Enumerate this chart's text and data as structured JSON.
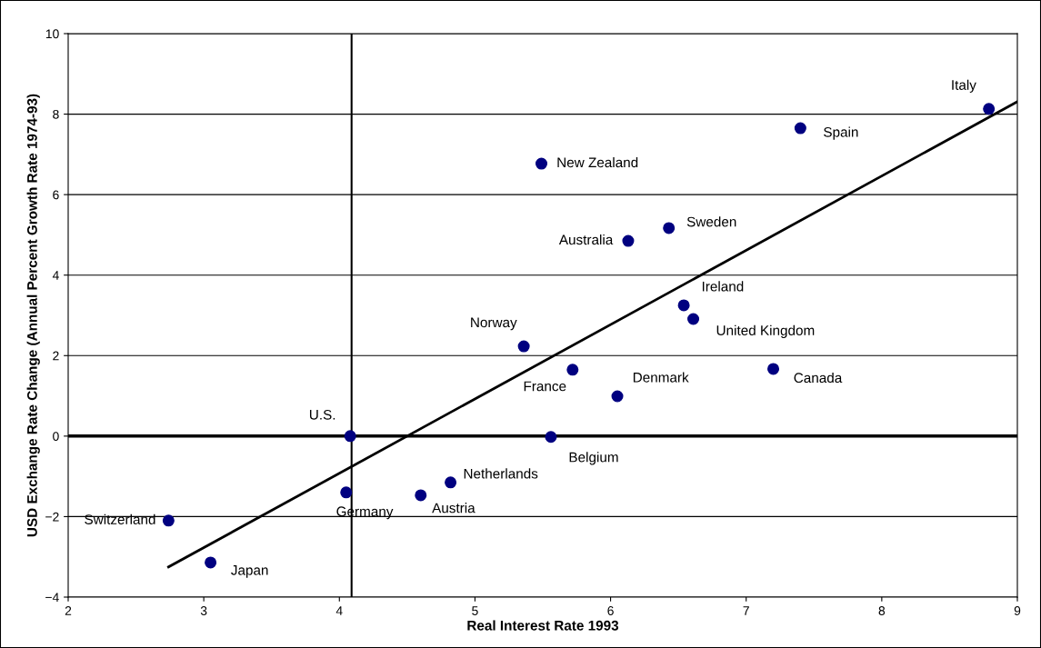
{
  "chart_data": {
    "type": "scatter",
    "xlabel": "Real Interest Rate 1993",
    "ylabel": "USD Exchange Rate Change (Annual Percent Growth Rate 1974-93)",
    "xlim": [
      2,
      9
    ],
    "xticks": [
      2,
      3,
      4,
      5,
      6,
      7,
      8,
      9
    ],
    "ylim": [
      -4,
      10
    ],
    "yticks": [
      -4,
      -2,
      0,
      2,
      4,
      6,
      8,
      10
    ],
    "grid": "y",
    "series": [
      {
        "color": "#000080",
        "marker": "circle",
        "x": [
          8.79,
          7.4,
          5.49,
          6.43,
          6.13,
          6.54,
          6.61,
          5.36,
          5.72,
          6.05,
          7.2,
          4.08,
          5.56,
          4.82,
          4.6,
          4.05,
          2.74,
          3.05
        ],
        "values": [
          8.13,
          7.65,
          6.77,
          5.17,
          4.85,
          3.25,
          2.91,
          2.23,
          1.65,
          0.99,
          1.67,
          0.0,
          -0.02,
          -1.15,
          -1.47,
          -1.4,
          -2.1,
          -3.14
        ]
      },
      {
        "type": "line",
        "marker": "none",
        "color": "#000000",
        "x": [
          2.74,
          9.0
        ],
        "values": [
          -3.25,
          8.31
        ]
      }
    ],
    "annotations": [
      {
        "text": "Italy",
        "x": 8.79,
        "y": 8.13
      },
      {
        "text": "Spain",
        "x": 7.4,
        "y": 7.65
      },
      {
        "text": "New Zealand",
        "x": 5.49,
        "y": 6.77
      },
      {
        "text": "Sweden",
        "x": 6.43,
        "y": 5.17
      },
      {
        "text": "Australia",
        "x": 6.13,
        "y": 4.85
      },
      {
        "text": "Ireland",
        "x": 6.54,
        "y": 3.25
      },
      {
        "text": "United Kingdom",
        "x": 6.61,
        "y": 2.91
      },
      {
        "text": "Norway",
        "x": 5.36,
        "y": 2.23
      },
      {
        "text": "France",
        "x": 5.72,
        "y": 1.65
      },
      {
        "text": "Denmark",
        "x": 6.05,
        "y": 0.99
      },
      {
        "text": "Canada",
        "x": 7.2,
        "y": 1.67
      },
      {
        "text": "U.S.",
        "x": 4.08,
        "y": 0.0
      },
      {
        "text": "Belgium",
        "x": 5.56,
        "y": -0.02
      },
      {
        "text": "Netherlands",
        "x": 4.82,
        "y": -1.15
      },
      {
        "text": "Austria",
        "x": 4.6,
        "y": -1.47
      },
      {
        "text": "Germany",
        "x": 4.05,
        "y": -1.4
      },
      {
        "text": "Switzerland",
        "x": 2.74,
        "y": -2.1
      },
      {
        "text": "Japan",
        "x": 3.05,
        "y": -3.14
      }
    ],
    "ref_lines": [
      {
        "axis": "x",
        "value": 4.09,
        "color": "#000000"
      },
      {
        "axis": "y",
        "value": 0,
        "color": "#000000"
      }
    ]
  }
}
